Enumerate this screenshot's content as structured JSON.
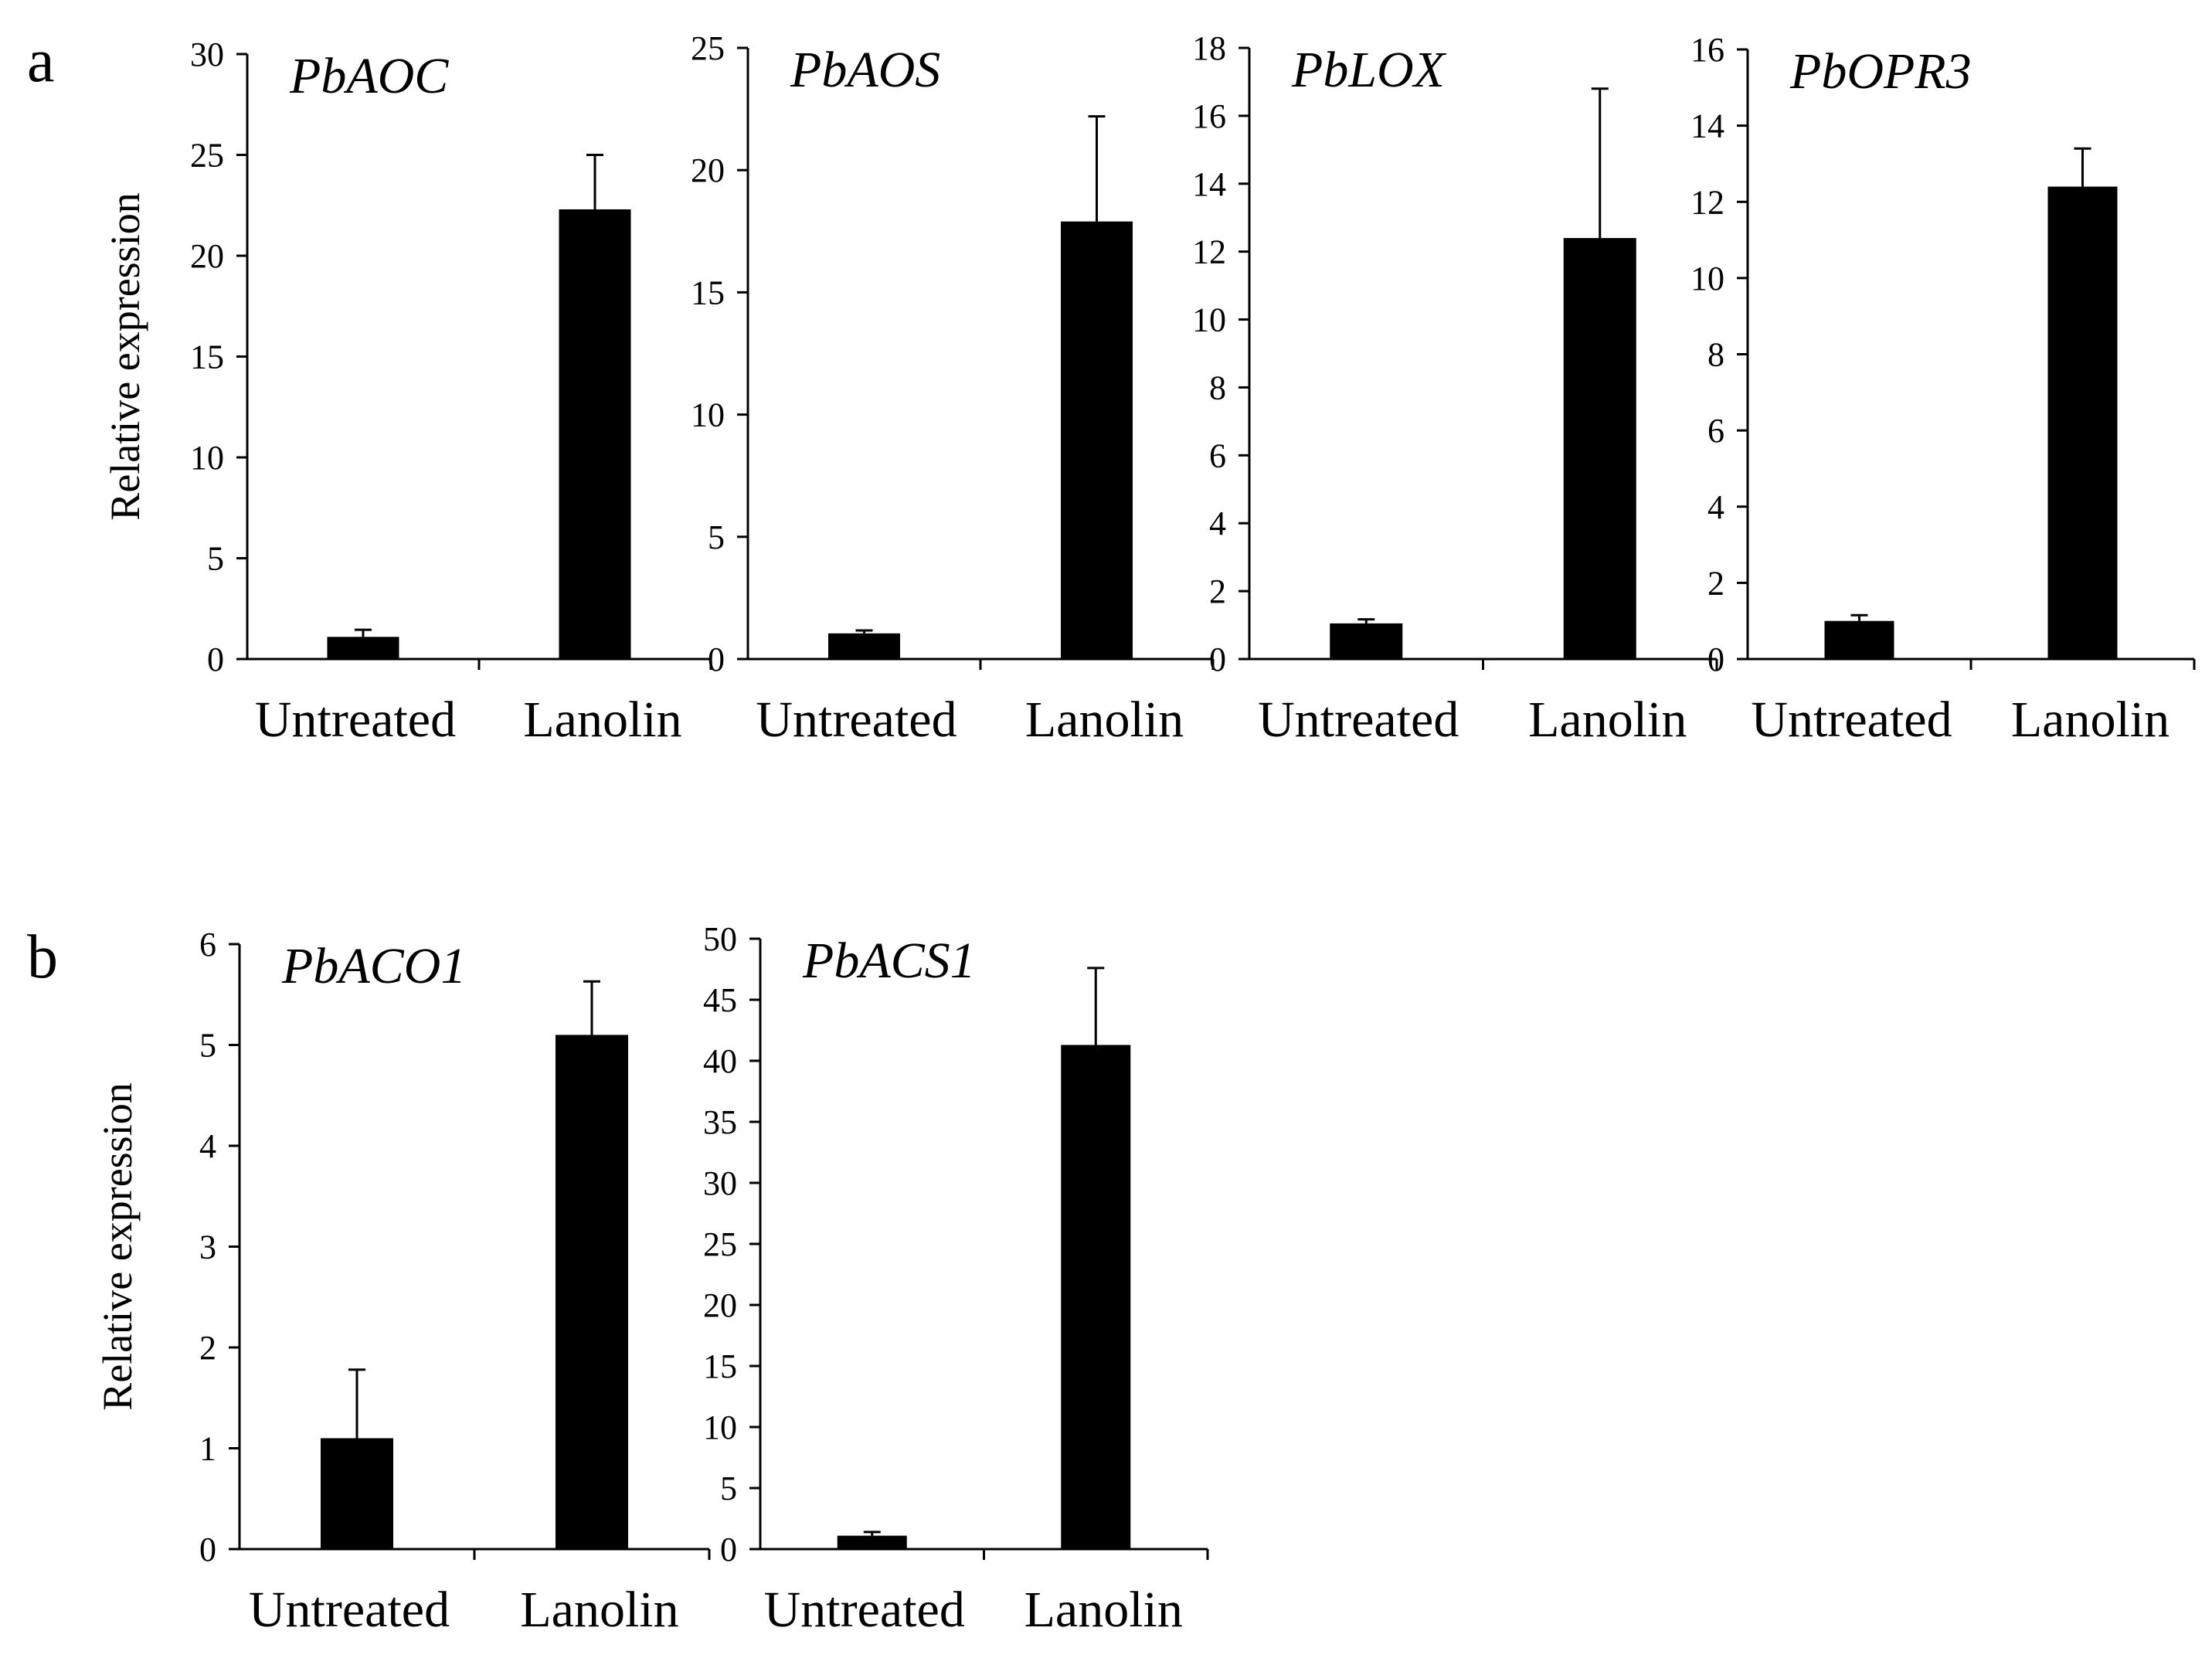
{
  "figure": {
    "panel_a_label": "a",
    "panel_b_label": "b",
    "y_axis_label": "Relative expression"
  },
  "colors": {
    "bar": "#000000",
    "axis": "#000000",
    "background": "#ffffff"
  },
  "chart_data": [
    {
      "type": "bar",
      "panel": "a",
      "title": "PbAOC",
      "categories": [
        "Untreated",
        "Lanolin"
      ],
      "values": [
        1.1,
        22.3
      ],
      "errors": [
        0.35,
        2.7
      ],
      "ylim": [
        0,
        30
      ],
      "yticks": [
        0,
        5,
        10,
        15,
        20,
        25,
        30
      ],
      "ylabel": "Relative expression",
      "xlabel": ""
    },
    {
      "type": "bar",
      "panel": "a",
      "title": "PbAOS",
      "categories": [
        "Untreated",
        "Lanolin"
      ],
      "values": [
        1.05,
        17.9
      ],
      "errors": [
        0.12,
        4.3
      ],
      "ylim": [
        0,
        25
      ],
      "yticks": [
        0,
        5,
        10,
        15,
        20,
        25
      ],
      "ylabel": "",
      "xlabel": ""
    },
    {
      "type": "bar",
      "panel": "a",
      "title": "PbLOX",
      "categories": [
        "Untreated",
        "Lanolin"
      ],
      "values": [
        1.05,
        12.4
      ],
      "errors": [
        0.12,
        4.4
      ],
      "ylim": [
        0,
        18
      ],
      "yticks": [
        0,
        2,
        4,
        6,
        8,
        10,
        12,
        14,
        16,
        18
      ],
      "ylabel": "",
      "xlabel": ""
    },
    {
      "type": "bar",
      "panel": "a",
      "title": "PbOPR3",
      "categories": [
        "Untreated",
        "Lanolin"
      ],
      "values": [
        1.0,
        12.4
      ],
      "errors": [
        0.15,
        1.0
      ],
      "ylim": [
        0,
        16
      ],
      "yticks": [
        0,
        2,
        4,
        6,
        8,
        10,
        12,
        14,
        16
      ],
      "ylabel": "",
      "xlabel": ""
    },
    {
      "type": "bar",
      "panel": "b",
      "title": "PbACO1",
      "categories": [
        "Untreated",
        "Lanolin"
      ],
      "values": [
        1.1,
        5.1
      ],
      "errors": [
        0.68,
        0.53
      ],
      "ylim": [
        0,
        6
      ],
      "yticks": [
        0,
        1,
        2,
        3,
        4,
        5,
        6
      ],
      "ylabel": "Relative expression",
      "xlabel": ""
    },
    {
      "type": "bar",
      "panel": "b",
      "title": "PbACS1",
      "categories": [
        "Untreated",
        "Lanolin"
      ],
      "values": [
        1.1,
        41.3
      ],
      "errors": [
        0.3,
        6.3
      ],
      "ylim": [
        0,
        50
      ],
      "yticks": [
        0,
        5,
        10,
        15,
        20,
        25,
        30,
        35,
        40,
        45,
        50
      ],
      "ylabel": "",
      "xlabel": ""
    }
  ]
}
